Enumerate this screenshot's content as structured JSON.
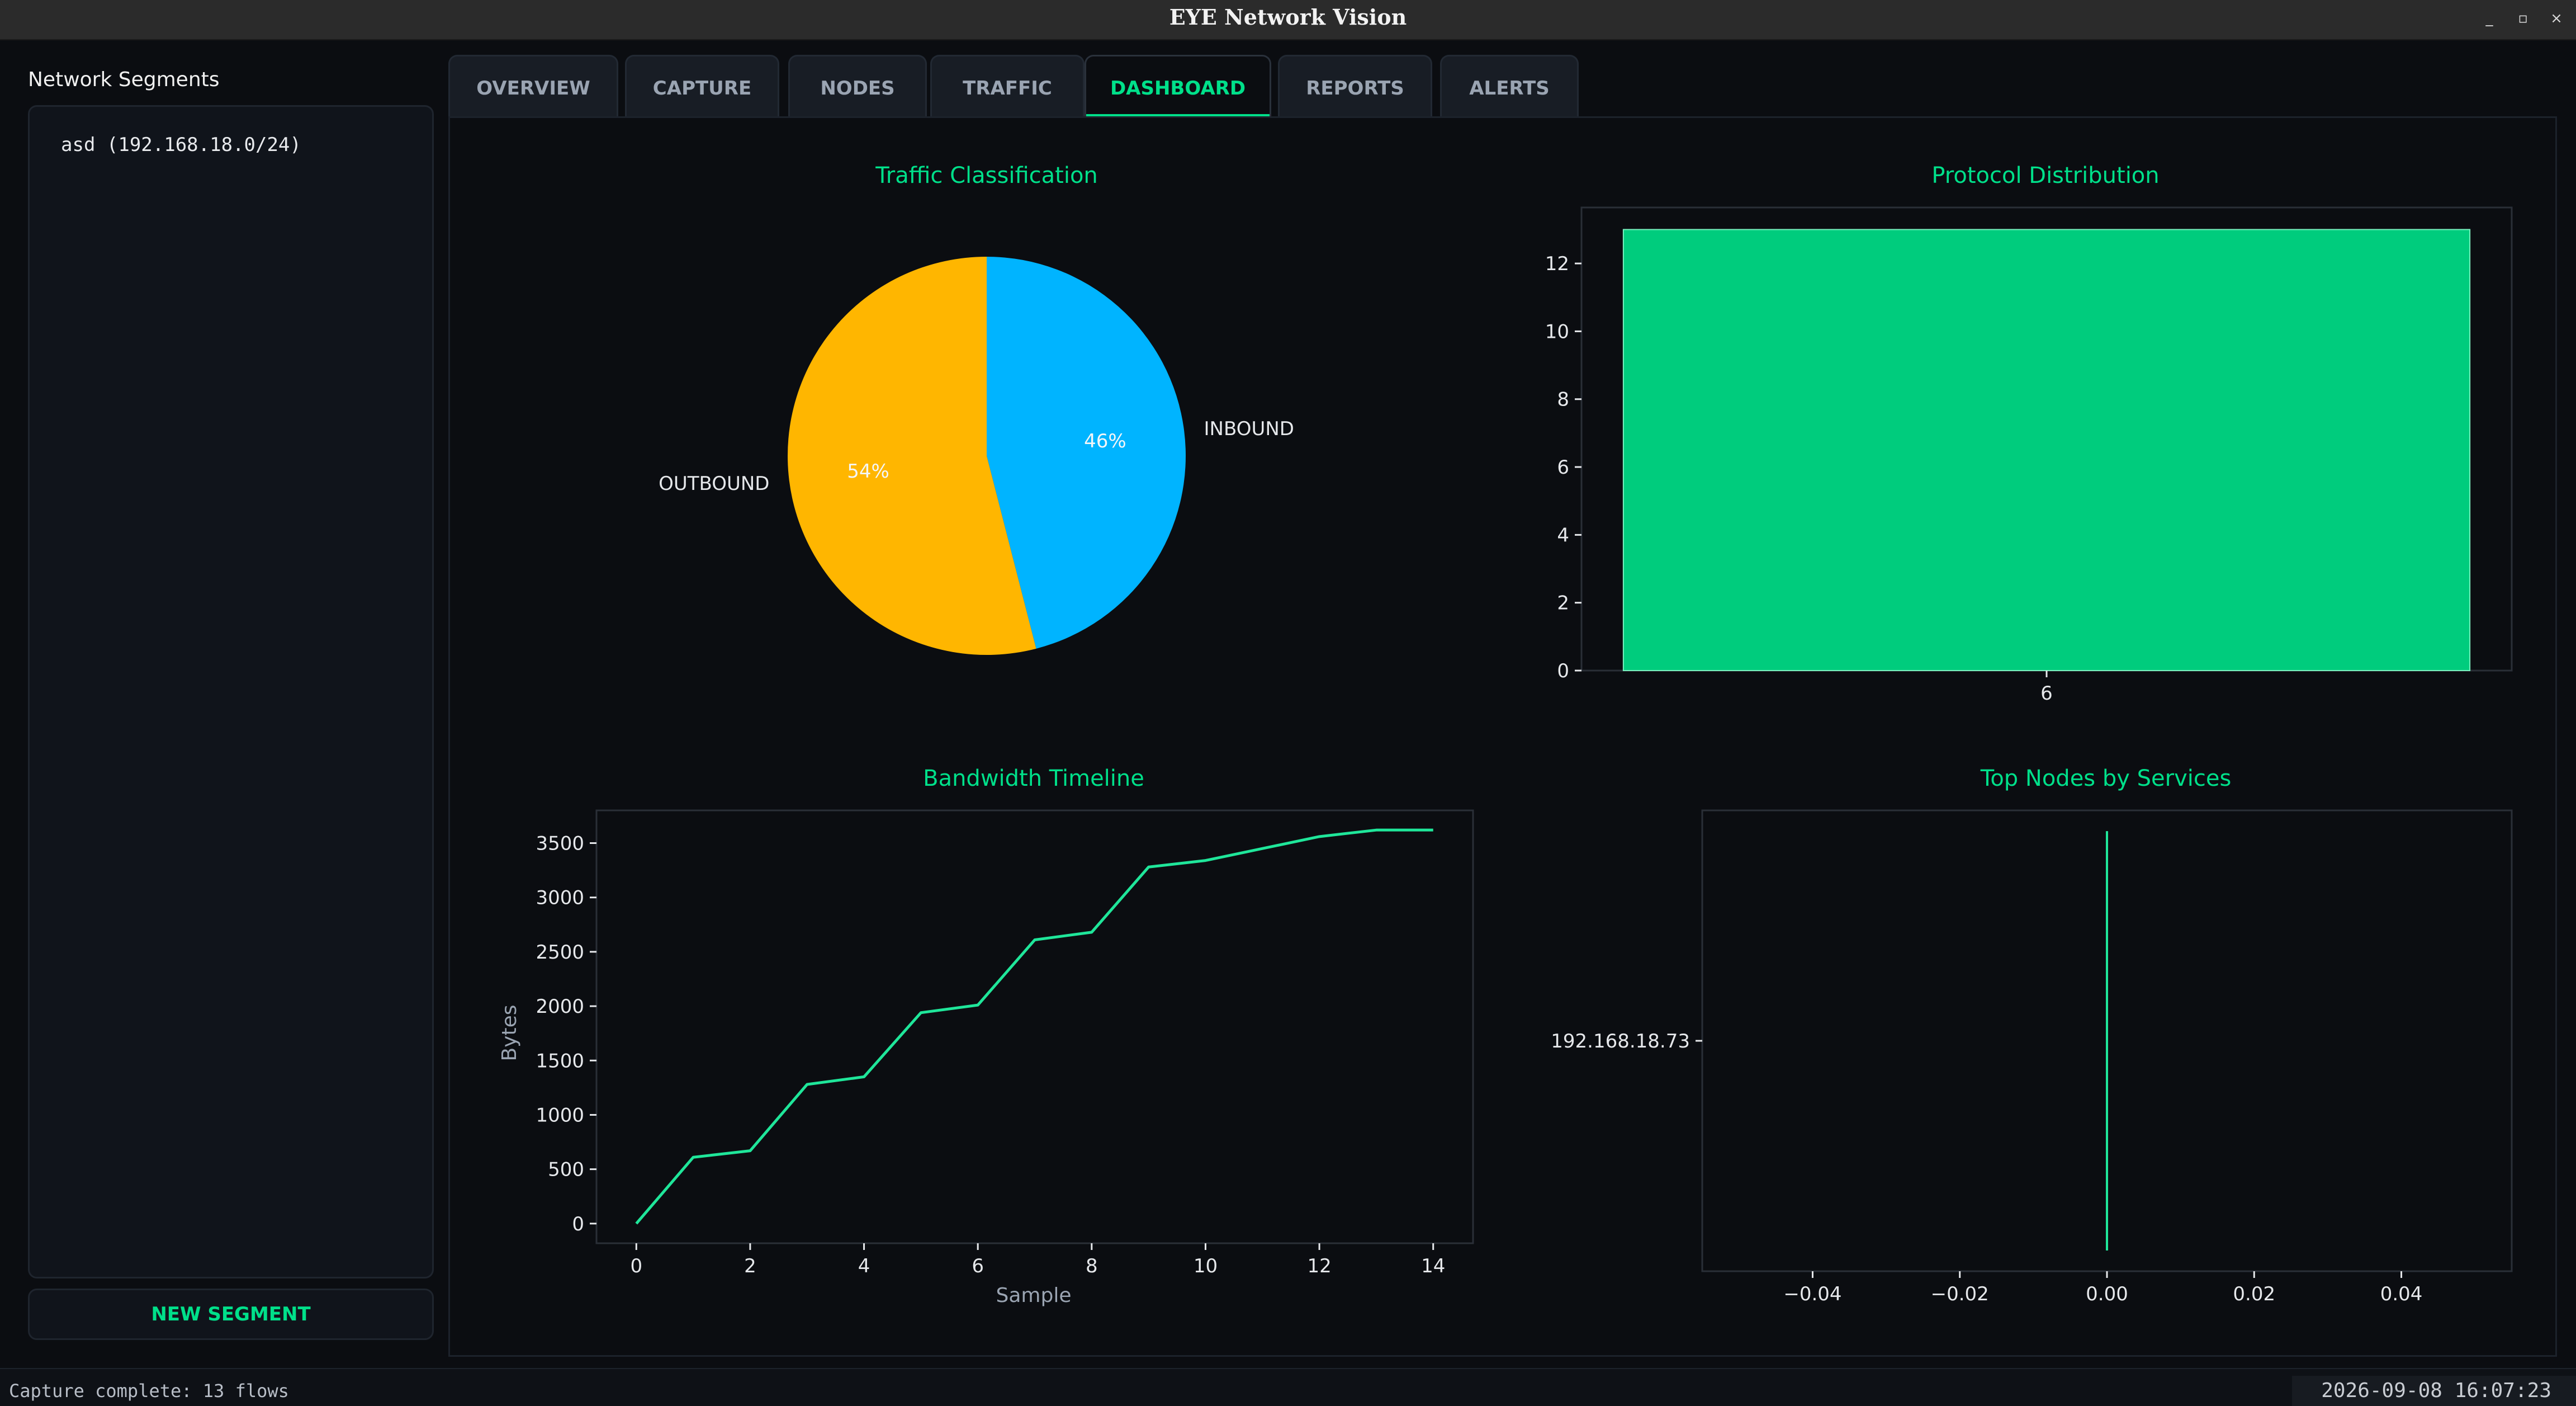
{
  "window": {
    "title": "EYE Network Vision",
    "minimize_glyph": "_",
    "maximize_glyph": "▫",
    "close_glyph": "×"
  },
  "sidebar": {
    "heading": "Network Segments",
    "segments": [
      {
        "label": "asd (192.168.18.0/24)"
      }
    ],
    "new_segment_label": "NEW SEGMENT"
  },
  "tabs": [
    {
      "label": "OVERVIEW",
      "active": false
    },
    {
      "label": "CAPTURE",
      "active": false
    },
    {
      "label": "NODES",
      "active": false
    },
    {
      "label": "TRAFFIC",
      "active": false
    },
    {
      "label": "DASHBOARD",
      "active": true
    },
    {
      "label": "REPORTS",
      "active": false
    },
    {
      "label": "ALERTS",
      "active": false
    }
  ],
  "colors": {
    "accent": "#00e08a",
    "bar": "#00cc7d",
    "line": "#1fe69a",
    "outbound": "#ffb600",
    "inbound": "#00b4ff"
  },
  "chart_data": [
    {
      "type": "pie",
      "title": "Traffic Classification",
      "categories": [
        "INBOUND",
        "OUTBOUND"
      ],
      "values": [
        46,
        54
      ],
      "labels": [
        "46%",
        "54%"
      ],
      "colors": [
        "#00b4ff",
        "#ffb600"
      ]
    },
    {
      "type": "bar",
      "title": "Protocol Distribution",
      "categories": [
        "6"
      ],
      "values": [
        13
      ],
      "ylim": [
        0,
        13.65
      ],
      "yticks": [
        0,
        2,
        4,
        6,
        8,
        10,
        12
      ]
    },
    {
      "type": "line",
      "title": "Bandwidth Timeline",
      "xlabel": "Sample",
      "ylabel": "Bytes",
      "x": [
        0,
        1,
        2,
        3,
        4,
        5,
        6,
        7,
        8,
        9,
        10,
        11,
        12,
        13,
        14
      ],
      "y": [
        0,
        610,
        670,
        1280,
        1350,
        1940,
        2010,
        2610,
        2680,
        3280,
        3340,
        3450,
        3560,
        3620,
        3620
      ],
      "xlim": [
        -0.7,
        14.7
      ],
      "ylim": [
        -181,
        3801
      ],
      "xticks": [
        0,
        2,
        4,
        6,
        8,
        10,
        12,
        14
      ],
      "yticks": [
        0,
        500,
        1000,
        1500,
        2000,
        2500,
        3000,
        3500
      ]
    },
    {
      "type": "bar",
      "orientation": "horizontal",
      "title": "Top Nodes by Services",
      "categories": [
        "192.168.18.73"
      ],
      "values": [
        0
      ],
      "xlim": [
        -0.055,
        0.055
      ],
      "xticks": [
        -0.04,
        -0.02,
        0.0,
        0.02,
        0.04
      ],
      "xtick_labels": [
        "−0.04",
        "−0.02",
        "0.00",
        "0.02",
        "0.04"
      ]
    }
  ],
  "status": {
    "message": "Capture complete: 13 flows",
    "timestamp": "2026-09-08 16:07:23"
  }
}
